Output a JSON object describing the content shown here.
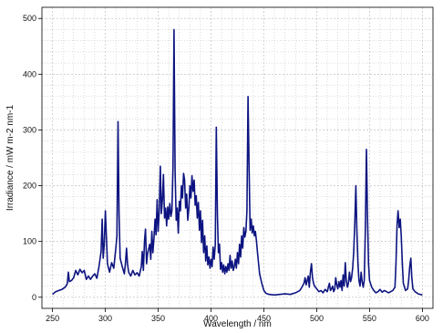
{
  "chart_data": {
    "type": "line",
    "title": "",
    "xlabel": "Wavelength / nm",
    "ylabel": "Irradiance / mW m-2 nm-1",
    "xlim": [
      240,
      610
    ],
    "ylim": [
      -20,
      520
    ],
    "x_ticks": [
      250,
      300,
      350,
      400,
      450,
      500,
      550,
      600
    ],
    "y_ticks": [
      0,
      100,
      200,
      300,
      400,
      500
    ],
    "grid": true,
    "legend": "none",
    "colors": {
      "line": "#0d1480",
      "grid": "#b8b8b8",
      "axis": "#000000",
      "background": "#ffffff"
    },
    "series": [
      {
        "points": [
          [
            250,
            5
          ],
          [
            253,
            10
          ],
          [
            256,
            12
          ],
          [
            259,
            14
          ],
          [
            262,
            18
          ],
          [
            264,
            24
          ],
          [
            265,
            45
          ],
          [
            266,
            28
          ],
          [
            268,
            30
          ],
          [
            270,
            35
          ],
          [
            272,
            48
          ],
          [
            274,
            40
          ],
          [
            276,
            50
          ],
          [
            278,
            44
          ],
          [
            280,
            48
          ],
          [
            282,
            32
          ],
          [
            284,
            38
          ],
          [
            286,
            32
          ],
          [
            288,
            38
          ],
          [
            290,
            42
          ],
          [
            292,
            34
          ],
          [
            294,
            55
          ],
          [
            296,
            82
          ],
          [
            297,
            140
          ],
          [
            298,
            70
          ],
          [
            299,
            95
          ],
          [
            300,
            155
          ],
          [
            301,
            110
          ],
          [
            302,
            60
          ],
          [
            304,
            45
          ],
          [
            306,
            62
          ],
          [
            308,
            52
          ],
          [
            310,
            90
          ],
          [
            311,
            110
          ],
          [
            312,
            315
          ],
          [
            313,
            150
          ],
          [
            314,
            70
          ],
          [
            316,
            55
          ],
          [
            318,
            42
          ],
          [
            319,
            60
          ],
          [
            320,
            88
          ],
          [
            321,
            60
          ],
          [
            322,
            45
          ],
          [
            324,
            38
          ],
          [
            326,
            48
          ],
          [
            328,
            40
          ],
          [
            330,
            44
          ],
          [
            332,
            38
          ],
          [
            334,
            55
          ],
          [
            335,
            82
          ],
          [
            336,
            48
          ],
          [
            337,
            100
          ],
          [
            338,
            122
          ],
          [
            339,
            60
          ],
          [
            340,
            78
          ],
          [
            342,
            95
          ],
          [
            343,
            68
          ],
          [
            344,
            118
          ],
          [
            345,
            80
          ],
          [
            346,
            105
          ],
          [
            347,
            140
          ],
          [
            348,
            112
          ],
          [
            349,
            175
          ],
          [
            350,
            118
          ],
          [
            351,
            155
          ],
          [
            352,
            235
          ],
          [
            353,
            150
          ],
          [
            354,
            175
          ],
          [
            355,
            220
          ],
          [
            356,
            142
          ],
          [
            357,
            160
          ],
          [
            358,
            128
          ],
          [
            359,
            162
          ],
          [
            360,
            140
          ],
          [
            361,
            168
          ],
          [
            362,
            145
          ],
          [
            363,
            155
          ],
          [
            364,
            235
          ],
          [
            365,
            480
          ],
          [
            366,
            225
          ],
          [
            367,
            138
          ],
          [
            368,
            160
          ],
          [
            369,
            115
          ],
          [
            370,
            172
          ],
          [
            371,
            155
          ],
          [
            372,
            200
          ],
          [
            373,
            178
          ],
          [
            374,
            222
          ],
          [
            375,
            210
          ],
          [
            376,
            160
          ],
          [
            377,
            185
          ],
          [
            378,
            138
          ],
          [
            379,
            160
          ],
          [
            380,
            200
          ],
          [
            381,
            178
          ],
          [
            382,
            218
          ],
          [
            383,
            190
          ],
          [
            384,
            210
          ],
          [
            385,
            165
          ],
          [
            386,
            182
          ],
          [
            387,
            142
          ],
          [
            388,
            170
          ],
          [
            389,
            120
          ],
          [
            390,
            155
          ],
          [
            391,
            98
          ],
          [
            392,
            138
          ],
          [
            393,
            80
          ],
          [
            394,
            110
          ],
          [
            395,
            65
          ],
          [
            396,
            92
          ],
          [
            397,
            58
          ],
          [
            398,
            72
          ],
          [
            399,
            52
          ],
          [
            400,
            68
          ],
          [
            401,
            55
          ],
          [
            402,
            90
          ],
          [
            403,
            68
          ],
          [
            404,
            95
          ],
          [
            405,
            305
          ],
          [
            406,
            150
          ],
          [
            407,
            80
          ],
          [
            408,
            95
          ],
          [
            409,
            50
          ],
          [
            410,
            62
          ],
          [
            411,
            45
          ],
          [
            412,
            58
          ],
          [
            413,
            42
          ],
          [
            414,
            55
          ],
          [
            415,
            45
          ],
          [
            416,
            60
          ],
          [
            417,
            48
          ],
          [
            418,
            75
          ],
          [
            419,
            52
          ],
          [
            420,
            65
          ],
          [
            421,
            48
          ],
          [
            422,
            55
          ],
          [
            423,
            68
          ],
          [
            424,
            52
          ],
          [
            425,
            80
          ],
          [
            426,
            60
          ],
          [
            427,
            95
          ],
          [
            428,
            72
          ],
          [
            429,
            110
          ],
          [
            430,
            88
          ],
          [
            431,
            125
          ],
          [
            432,
            108
          ],
          [
            433,
            118
          ],
          [
            434,
            155
          ],
          [
            435,
            360
          ],
          [
            436,
            230
          ],
          [
            437,
            120
          ],
          [
            438,
            140
          ],
          [
            439,
            115
          ],
          [
            440,
            128
          ],
          [
            441,
            110
          ],
          [
            442,
            118
          ],
          [
            443,
            100
          ],
          [
            444,
            80
          ],
          [
            445,
            60
          ],
          [
            446,
            42
          ],
          [
            448,
            25
          ],
          [
            450,
            12
          ],
          [
            452,
            7
          ],
          [
            455,
            5
          ],
          [
            460,
            4
          ],
          [
            465,
            5
          ],
          [
            470,
            6
          ],
          [
            475,
            5
          ],
          [
            480,
            8
          ],
          [
            484,
            12
          ],
          [
            486,
            18
          ],
          [
            488,
            25
          ],
          [
            489,
            35
          ],
          [
            490,
            22
          ],
          [
            491,
            30
          ],
          [
            492,
            38
          ],
          [
            493,
            18
          ],
          [
            494,
            45
          ],
          [
            495,
            60
          ],
          [
            496,
            35
          ],
          [
            497,
            25
          ],
          [
            498,
            20
          ],
          [
            500,
            15
          ],
          [
            502,
            10
          ],
          [
            504,
            12
          ],
          [
            506,
            8
          ],
          [
            508,
            14
          ],
          [
            510,
            10
          ],
          [
            511,
            18
          ],
          [
            512,
            25
          ],
          [
            513,
            12
          ],
          [
            514,
            15
          ],
          [
            515,
            20
          ],
          [
            516,
            10
          ],
          [
            517,
            14
          ],
          [
            518,
            35
          ],
          [
            519,
            22
          ],
          [
            520,
            15
          ],
          [
            521,
            28
          ],
          [
            522,
            18
          ],
          [
            523,
            30
          ],
          [
            524,
            12
          ],
          [
            525,
            40
          ],
          [
            526,
            20
          ],
          [
            527,
            62
          ],
          [
            528,
            30
          ],
          [
            529,
            18
          ],
          [
            530,
            25
          ],
          [
            531,
            45
          ],
          [
            532,
            28
          ],
          [
            533,
            35
          ],
          [
            534,
            52
          ],
          [
            535,
            80
          ],
          [
            536,
            130
          ],
          [
            537,
            200
          ],
          [
            538,
            120
          ],
          [
            539,
            60
          ],
          [
            540,
            30
          ],
          [
            541,
            20
          ],
          [
            542,
            45
          ],
          [
            543,
            28
          ],
          [
            544,
            18
          ],
          [
            545,
            30
          ],
          [
            546,
            120
          ],
          [
            547,
            265
          ],
          [
            548,
            150
          ],
          [
            549,
            60
          ],
          [
            550,
            30
          ],
          [
            552,
            18
          ],
          [
            554,
            12
          ],
          [
            556,
            8
          ],
          [
            558,
            10
          ],
          [
            560,
            14
          ],
          [
            562,
            9
          ],
          [
            564,
            12
          ],
          [
            566,
            10
          ],
          [
            568,
            8
          ],
          [
            570,
            10
          ],
          [
            572,
            12
          ],
          [
            574,
            18
          ],
          [
            575,
            60
          ],
          [
            576,
            130
          ],
          [
            577,
            155
          ],
          [
            578,
            125
          ],
          [
            579,
            140
          ],
          [
            580,
            110
          ],
          [
            581,
            60
          ],
          [
            582,
            25
          ],
          [
            584,
            12
          ],
          [
            586,
            15
          ],
          [
            587,
            30
          ],
          [
            588,
            55
          ],
          [
            589,
            70
          ],
          [
            590,
            35
          ],
          [
            591,
            15
          ],
          [
            593,
            10
          ],
          [
            596,
            6
          ],
          [
            600,
            4
          ]
        ]
      }
    ]
  }
}
